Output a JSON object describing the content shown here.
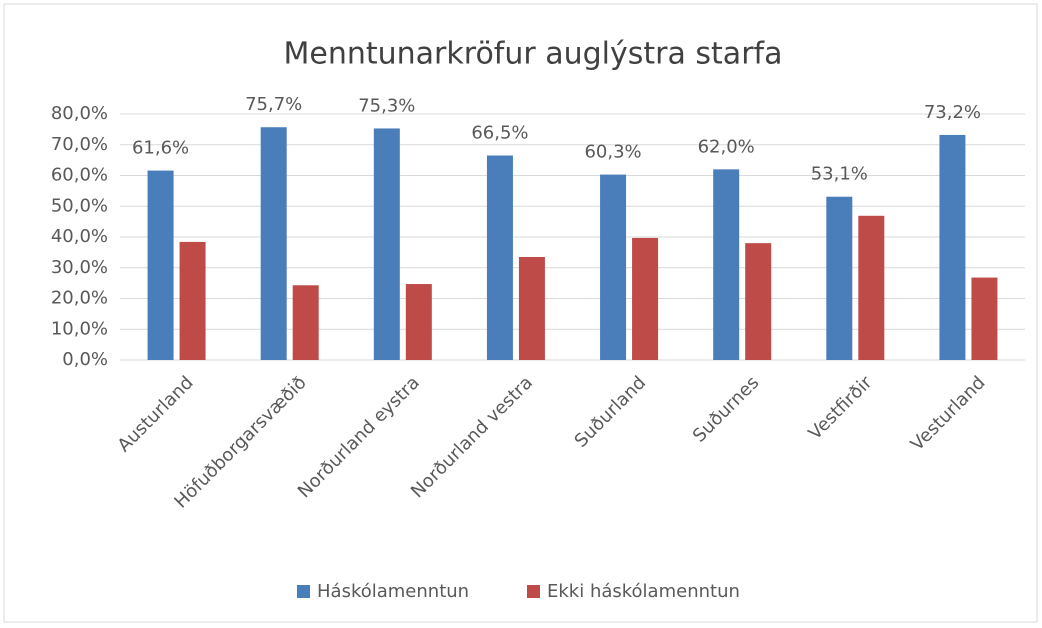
{
  "chart_data": {
    "type": "bar",
    "title": "Menntunarkröfur auglýstra starfa",
    "categories": [
      "Austurland",
      "Höfuðborgarsvæðið",
      "Norðurland eystra",
      "Norðurland vestra",
      "Suðurland",
      "Suðurnes",
      "Vestfirðir",
      "Vesturland"
    ],
    "series": [
      {
        "name": "Háskólamenntun",
        "color": "#4a7ebb",
        "values": [
          61.6,
          75.7,
          75.3,
          66.5,
          60.3,
          62.0,
          53.1,
          73.2
        ],
        "value_labels": [
          "61,6%",
          "75,7%",
          "75,3%",
          "66,5%",
          "60,3%",
          "62,0%",
          "53,1%",
          "73,2%"
        ]
      },
      {
        "name": "Ekki háskólamenntun",
        "color": "#be4b48",
        "values": [
          38.4,
          24.3,
          24.7,
          33.5,
          39.7,
          38.0,
          46.9,
          26.8
        ]
      }
    ],
    "ylim": [
      0,
      80
    ],
    "yticks": [
      {
        "value": 0,
        "label": "0,0%"
      },
      {
        "value": 10,
        "label": "10,0%"
      },
      {
        "value": 20,
        "label": "20,0%"
      },
      {
        "value": 30,
        "label": "30,0%"
      },
      {
        "value": 40,
        "label": "40,0%"
      },
      {
        "value": 50,
        "label": "50,0%"
      },
      {
        "value": 60,
        "label": "60,0%"
      },
      {
        "value": 70,
        "label": "70,0%"
      },
      {
        "value": 80,
        "label": "80,0%"
      }
    ],
    "grid": true,
    "legend": "bottom"
  }
}
